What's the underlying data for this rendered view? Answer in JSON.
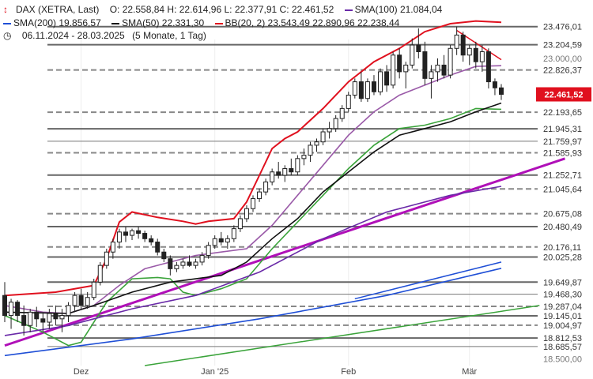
{
  "legend": {
    "instrument": "DAX (XETRA, Last)",
    "ohlc": "O: 22.558,84  H: 22.614,96  L: 22.377,91  C: 22.461,52",
    "sma100": "SMA(100)  21.084,04",
    "sma200": "SMA(200)  19.856,57",
    "sma50": "SMA(50)  22.331,30",
    "bb": "BB(20, 2)  23.543,49  22.890,96  22.238,44",
    "range": "06.11.2024 - 28.03.2025",
    "period": "(5 Monate, 1 Tag)"
  },
  "colors": {
    "sma100": "#6a2aa8",
    "sma200": "#1f4fd6",
    "sma50": "#111111",
    "bb_upper": "#e0101e",
    "bb_mid": "#9a5aa8",
    "bb_lower": "#3aa33a",
    "trend_magenta": "#b010b8",
    "trend_red": "#e0101e",
    "trend_green": "#3aa33a",
    "trend_blue": "#1f4fd6",
    "level_dark": "#666666",
    "level_dashed": "#888888",
    "last_price_bg": "#e0101e"
  },
  "chart_data": {
    "type": "candlestick",
    "y_axis_ticks": [
      "23.000,00",
      "18.500,00"
    ],
    "x_axis_ticks": [
      "Dez",
      "Jan '25",
      "Feb",
      "Mär"
    ],
    "ylim": [
      18400,
      23650
    ],
    "last_price_label": "22.461,52",
    "levels": [
      {
        "label": "23.476,01",
        "value": 23476.01,
        "style": "solid"
      },
      {
        "label": "23.204,59",
        "value": 23204.59,
        "style": "solid"
      },
      {
        "label": "22.826,37",
        "value": 22826.37,
        "style": "dashed"
      },
      {
        "label": "22.193,65",
        "value": 22193.65,
        "style": "dashed"
      },
      {
        "label": "21.945,31",
        "value": 21945.31,
        "style": "solid"
      },
      {
        "label": "21.759,97",
        "value": 21759.97,
        "style": "thin"
      },
      {
        "label": "21.585,93",
        "value": 21585.93,
        "style": "dashed"
      },
      {
        "label": "21.252,71",
        "value": 21252.71,
        "style": "solid"
      },
      {
        "label": "21.045,64",
        "value": 21045.64,
        "style": "dashed"
      },
      {
        "label": "20.675,08",
        "value": 20675.08,
        "style": "dashed"
      },
      {
        "label": "20.480,49",
        "value": 20480.49,
        "style": "solid"
      },
      {
        "label": "20.176,11",
        "value": 20176.11,
        "style": "dashed"
      },
      {
        "label": "20.025,28",
        "value": 20025.28,
        "style": "solid"
      },
      {
        "label": "19.649,87",
        "value": 19649.87,
        "style": "solid"
      },
      {
        "label": "19.468,30",
        "value": 19468.3,
        "style": "thin"
      },
      {
        "label": "19.287,04",
        "value": 19287.04,
        "style": "dashed"
      },
      {
        "label": "19.145,01",
        "value": 19145.01,
        "style": "solid"
      },
      {
        "label": "19.004,97",
        "value": 19004.97,
        "style": "dashed"
      },
      {
        "label": "18.812,53",
        "value": 18812.53,
        "style": "solid"
      },
      {
        "label": "18.685,57",
        "value": 18685.57,
        "style": "thin"
      }
    ],
    "candles": [
      {
        "o": 19450,
        "h": 19650,
        "l": 19050,
        "c": 19150
      },
      {
        "o": 19150,
        "h": 19400,
        "l": 18950,
        "c": 19350
      },
      {
        "o": 19350,
        "h": 19380,
        "l": 19050,
        "c": 19150
      },
      {
        "o": 19150,
        "h": 19300,
        "l": 18850,
        "c": 19000
      },
      {
        "o": 19000,
        "h": 19250,
        "l": 18900,
        "c": 19200
      },
      {
        "o": 19200,
        "h": 19280,
        "l": 18980,
        "c": 19100
      },
      {
        "o": 19100,
        "h": 19200,
        "l": 18900,
        "c": 19050
      },
      {
        "o": 19050,
        "h": 19250,
        "l": 18950,
        "c": 19180
      },
      {
        "o": 19180,
        "h": 19300,
        "l": 19000,
        "c": 19100
      },
      {
        "o": 19100,
        "h": 19250,
        "l": 18900,
        "c": 19150
      },
      {
        "o": 19150,
        "h": 19350,
        "l": 19050,
        "c": 19300
      },
      {
        "o": 19300,
        "h": 19500,
        "l": 19200,
        "c": 19450
      },
      {
        "o": 19450,
        "h": 19550,
        "l": 19250,
        "c": 19300
      },
      {
        "o": 19300,
        "h": 19500,
        "l": 19250,
        "c": 19420
      },
      {
        "o": 19420,
        "h": 19700,
        "l": 19380,
        "c": 19650
      },
      {
        "o": 19650,
        "h": 19950,
        "l": 19600,
        "c": 19900
      },
      {
        "o": 19900,
        "h": 20150,
        "l": 19850,
        "c": 20100
      },
      {
        "o": 20100,
        "h": 20300,
        "l": 20000,
        "c": 20250
      },
      {
        "o": 20250,
        "h": 20450,
        "l": 20150,
        "c": 20400
      },
      {
        "o": 20400,
        "h": 20480,
        "l": 20250,
        "c": 20350
      },
      {
        "o": 20350,
        "h": 20450,
        "l": 20280,
        "c": 20420
      },
      {
        "o": 20420,
        "h": 20480,
        "l": 20300,
        "c": 20380
      },
      {
        "o": 20380,
        "h": 20420,
        "l": 20250,
        "c": 20300
      },
      {
        "o": 20300,
        "h": 20350,
        "l": 20200,
        "c": 20250
      },
      {
        "o": 20250,
        "h": 20300,
        "l": 20050,
        "c": 20100
      },
      {
        "o": 20100,
        "h": 20150,
        "l": 19950,
        "c": 20000
      },
      {
        "o": 20000,
        "h": 20050,
        "l": 19750,
        "c": 19850
      },
      {
        "o": 19850,
        "h": 19950,
        "l": 19800,
        "c": 19900
      },
      {
        "o": 19900,
        "h": 20000,
        "l": 19850,
        "c": 19950
      },
      {
        "o": 19950,
        "h": 20050,
        "l": 19880,
        "c": 19900
      },
      {
        "o": 19900,
        "h": 20000,
        "l": 19850,
        "c": 19950
      },
      {
        "o": 19950,
        "h": 20100,
        "l": 19900,
        "c": 20050
      },
      {
        "o": 20050,
        "h": 20250,
        "l": 20000,
        "c": 20200
      },
      {
        "o": 20200,
        "h": 20350,
        "l": 20150,
        "c": 20300
      },
      {
        "o": 20300,
        "h": 20400,
        "l": 20200,
        "c": 20250
      },
      {
        "o": 20250,
        "h": 20350,
        "l": 20150,
        "c": 20300
      },
      {
        "o": 20300,
        "h": 20500,
        "l": 20250,
        "c": 20450
      },
      {
        "o": 20450,
        "h": 20650,
        "l": 20400,
        "c": 20600
      },
      {
        "o": 20600,
        "h": 20800,
        "l": 20550,
        "c": 20750
      },
      {
        "o": 20750,
        "h": 20950,
        "l": 20700,
        "c": 20900
      },
      {
        "o": 20900,
        "h": 21050,
        "l": 20850,
        "c": 21000
      },
      {
        "o": 21000,
        "h": 21200,
        "l": 20950,
        "c": 21150
      },
      {
        "o": 21150,
        "h": 21350,
        "l": 21100,
        "c": 21300
      },
      {
        "o": 21300,
        "h": 21450,
        "l": 21200,
        "c": 21250
      },
      {
        "o": 21250,
        "h": 21400,
        "l": 21150,
        "c": 21350
      },
      {
        "o": 21350,
        "h": 21500,
        "l": 21250,
        "c": 21300
      },
      {
        "o": 21300,
        "h": 21550,
        "l": 21250,
        "c": 21500
      },
      {
        "o": 21500,
        "h": 21650,
        "l": 21400,
        "c": 21550
      },
      {
        "o": 21550,
        "h": 21750,
        "l": 21450,
        "c": 21700
      },
      {
        "o": 21700,
        "h": 21800,
        "l": 21600,
        "c": 21750
      },
      {
        "o": 21750,
        "h": 21950,
        "l": 21700,
        "c": 21900
      },
      {
        "o": 21900,
        "h": 22050,
        "l": 21800,
        "c": 21950
      },
      {
        "o": 21950,
        "h": 22150,
        "l": 21900,
        "c": 22100
      },
      {
        "o": 22100,
        "h": 22300,
        "l": 22050,
        "c": 22250
      },
      {
        "o": 22250,
        "h": 22500,
        "l": 22200,
        "c": 22450
      },
      {
        "o": 22450,
        "h": 22700,
        "l": 22400,
        "c": 22650
      },
      {
        "o": 22650,
        "h": 22800,
        "l": 22350,
        "c": 22400
      },
      {
        "o": 22400,
        "h": 22700,
        "l": 22350,
        "c": 22650
      },
      {
        "o": 22650,
        "h": 22750,
        "l": 22450,
        "c": 22500
      },
      {
        "o": 22500,
        "h": 22850,
        "l": 22450,
        "c": 22800
      },
      {
        "o": 22800,
        "h": 22900,
        "l": 22500,
        "c": 22600
      },
      {
        "o": 22600,
        "h": 23100,
        "l": 22550,
        "c": 23050
      },
      {
        "o": 23050,
        "h": 23150,
        "l": 22700,
        "c": 22800
      },
      {
        "o": 22800,
        "h": 22950,
        "l": 22550,
        "c": 22900
      },
      {
        "o": 22900,
        "h": 23300,
        "l": 22850,
        "c": 23200
      },
      {
        "o": 23200,
        "h": 23450,
        "l": 23000,
        "c": 23100
      },
      {
        "o": 23100,
        "h": 23250,
        "l": 22600,
        "c": 22700
      },
      {
        "o": 22700,
        "h": 22900,
        "l": 22400,
        "c": 22800
      },
      {
        "o": 22800,
        "h": 23000,
        "l": 22650,
        "c": 22900
      },
      {
        "o": 22900,
        "h": 23050,
        "l": 22700,
        "c": 22750
      },
      {
        "o": 22750,
        "h": 23200,
        "l": 22700,
        "c": 23150
      },
      {
        "o": 23150,
        "h": 23476,
        "l": 23050,
        "c": 23350
      },
      {
        "o": 23350,
        "h": 23400,
        "l": 22950,
        "c": 23050
      },
      {
        "o": 23050,
        "h": 23200,
        "l": 22900,
        "c": 23150
      },
      {
        "o": 23150,
        "h": 23250,
        "l": 22850,
        "c": 22950
      },
      {
        "o": 22950,
        "h": 23200,
        "l": 22800,
        "c": 23100
      },
      {
        "o": 23100,
        "h": 23150,
        "l": 22550,
        "c": 22650
      },
      {
        "o": 22650,
        "h": 22700,
        "l": 22450,
        "c": 22559
      },
      {
        "o": 22559,
        "h": 22615,
        "l": 22378,
        "c": 22462
      }
    ],
    "series": [
      {
        "key": "bb_upper",
        "points": [
          [
            0,
            19450
          ],
          [
            8,
            19500
          ],
          [
            14,
            19600
          ],
          [
            16,
            20000
          ],
          [
            18,
            20550
          ],
          [
            20,
            20700
          ],
          [
            24,
            20620
          ],
          [
            28,
            20560
          ],
          [
            30,
            20520
          ],
          [
            32,
            20560
          ],
          [
            36,
            20600
          ],
          [
            38,
            20850
          ],
          [
            40,
            21250
          ],
          [
            42,
            21650
          ],
          [
            44,
            21800
          ],
          [
            46,
            21900
          ],
          [
            50,
            22250
          ],
          [
            54,
            22650
          ],
          [
            58,
            22950
          ],
          [
            62,
            23150
          ],
          [
            66,
            23400
          ],
          [
            70,
            23520
          ],
          [
            74,
            23560
          ],
          [
            78,
            23540
          ]
        ]
      },
      {
        "key": "bb_mid",
        "points": [
          [
            0,
            19300
          ],
          [
            6,
            19200
          ],
          [
            10,
            19180
          ],
          [
            14,
            19300
          ],
          [
            18,
            19600
          ],
          [
            22,
            19850
          ],
          [
            26,
            19950
          ],
          [
            30,
            20050
          ],
          [
            34,
            20100
          ],
          [
            38,
            20150
          ],
          [
            42,
            20500
          ],
          [
            46,
            20950
          ],
          [
            50,
            21400
          ],
          [
            54,
            21850
          ],
          [
            58,
            22200
          ],
          [
            62,
            22450
          ],
          [
            66,
            22600
          ],
          [
            70,
            22750
          ],
          [
            74,
            22880
          ],
          [
            78,
            22891
          ]
        ]
      },
      {
        "key": "bb_lower",
        "points": [
          [
            0,
            19150
          ],
          [
            6,
            18900
          ],
          [
            10,
            18700
          ],
          [
            12,
            18750
          ],
          [
            16,
            19350
          ],
          [
            20,
            19700
          ],
          [
            24,
            19720
          ],
          [
            26,
            19700
          ],
          [
            28,
            19500
          ],
          [
            30,
            19450
          ],
          [
            34,
            19550
          ],
          [
            38,
            19700
          ],
          [
            42,
            20150
          ],
          [
            46,
            20550
          ],
          [
            50,
            20950
          ],
          [
            54,
            21350
          ],
          [
            58,
            21700
          ],
          [
            62,
            21950
          ],
          [
            66,
            22000
          ],
          [
            70,
            22100
          ],
          [
            74,
            22250
          ],
          [
            78,
            22238
          ]
        ]
      },
      {
        "key": "sma50",
        "points": [
          [
            0,
            19200
          ],
          [
            10,
            19180
          ],
          [
            14,
            19300
          ],
          [
            20,
            19500
          ],
          [
            26,
            19650
          ],
          [
            30,
            19700
          ],
          [
            34,
            19750
          ],
          [
            38,
            19950
          ],
          [
            42,
            20300
          ],
          [
            46,
            20600
          ],
          [
            50,
            21000
          ],
          [
            54,
            21300
          ],
          [
            58,
            21600
          ],
          [
            62,
            21850
          ],
          [
            66,
            21950
          ],
          [
            70,
            22050
          ],
          [
            74,
            22200
          ],
          [
            78,
            22331
          ]
        ]
      },
      {
        "key": "sma100",
        "points": [
          [
            0,
            18850
          ],
          [
            10,
            19000
          ],
          [
            20,
            19250
          ],
          [
            30,
            19450
          ],
          [
            40,
            19800
          ],
          [
            50,
            20300
          ],
          [
            60,
            20700
          ],
          [
            70,
            20950
          ],
          [
            78,
            21084
          ]
        ]
      },
      {
        "key": "sma200",
        "points": [
          [
            0,
            18550
          ],
          [
            20,
            18800
          ],
          [
            40,
            19100
          ],
          [
            60,
            19450
          ],
          [
            78,
            19857
          ]
        ]
      }
    ],
    "trendlines": [
      {
        "key": "trend_magenta",
        "from": [
          0,
          18700
        ],
        "to": [
          88,
          21500
        ],
        "width": 3
      },
      {
        "key": "trend_green",
        "from": [
          22,
          18400
        ],
        "to": [
          84,
          19300
        ],
        "width": 1.5
      },
      {
        "key": "trend_red",
        "from": [
          71,
          23420
        ],
        "to": [
          78,
          22980
        ],
        "width": 1.5
      },
      {
        "key": "trend_blue",
        "from": [
          55,
          19400
        ],
        "to": [
          78,
          19950
        ],
        "width": 1.5
      }
    ]
  }
}
